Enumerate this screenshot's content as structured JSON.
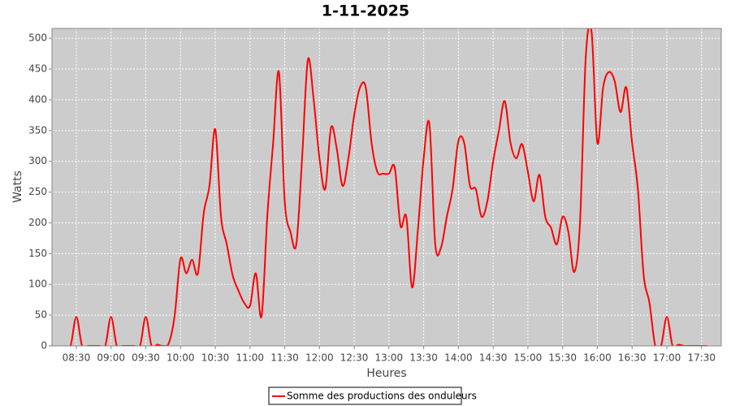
{
  "chart_data": {
    "type": "line",
    "title": "1-11-2025",
    "x_label": "Heures",
    "y_label": "Watts",
    "x": [
      "08:20",
      "08:25",
      "08:30",
      "08:35",
      "08:40",
      "08:45",
      "08:50",
      "08:55",
      "09:00",
      "09:05",
      "09:10",
      "09:15",
      "09:20",
      "09:25",
      "09:30",
      "09:35",
      "09:40",
      "09:45",
      "09:50",
      "09:55",
      "10:00",
      "10:05",
      "10:10",
      "10:15",
      "10:20",
      "10:25",
      "10:30",
      "10:35",
      "10:40",
      "10:45",
      "10:50",
      "10:55",
      "11:00",
      "11:05",
      "11:10",
      "11:15",
      "11:20",
      "11:25",
      "11:30",
      "11:35",
      "11:40",
      "11:45",
      "11:50",
      "11:55",
      "12:00",
      "12:05",
      "12:10",
      "12:15",
      "12:20",
      "12:25",
      "12:30",
      "12:35",
      "12:40",
      "12:45",
      "12:50",
      "12:55",
      "13:00",
      "13:05",
      "13:10",
      "13:15",
      "13:20",
      "13:25",
      "13:30",
      "13:35",
      "13:40",
      "13:45",
      "13:50",
      "13:55",
      "14:00",
      "14:05",
      "14:10",
      "14:15",
      "14:20",
      "14:25",
      "14:30",
      "14:35",
      "14:40",
      "14:45",
      "14:50",
      "14:55",
      "15:00",
      "15:05",
      "15:10",
      "15:15",
      "15:20",
      "15:25",
      "15:30",
      "15:35",
      "15:40",
      "15:45",
      "15:50",
      "15:55",
      "16:00",
      "16:05",
      "16:10",
      "16:15",
      "16:20",
      "16:25",
      "16:30",
      "16:35",
      "16:40",
      "16:45",
      "16:50",
      "16:55",
      "17:00",
      "17:05",
      "17:10",
      "17:15",
      "17:20",
      "17:25",
      "17:30",
      "17:35"
    ],
    "series": [
      {
        "name": "Somme des productions des onduleurs",
        "color": "#ff0000",
        "values": [
          0,
          0,
          47,
          0,
          0,
          0,
          0,
          0,
          47,
          0,
          0,
          0,
          0,
          0,
          47,
          0,
          2,
          0,
          5,
          50,
          142,
          118,
          140,
          118,
          215,
          260,
          352,
          210,
          165,
          115,
          90,
          70,
          65,
          118,
          48,
          212,
          330,
          445,
          235,
          185,
          165,
          305,
          465,
          400,
          305,
          255,
          355,
          320,
          260,
          305,
          375,
          420,
          420,
          330,
          283,
          280,
          280,
          290,
          195,
          210,
          95,
          188,
          305,
          360,
          165,
          160,
          210,
          255,
          333,
          330,
          260,
          255,
          210,
          235,
          300,
          350,
          398,
          330,
          305,
          328,
          283,
          235,
          278,
          210,
          192,
          165,
          210,
          185,
          120,
          200,
          470,
          510,
          330,
          420,
          445,
          430,
          380,
          420,
          330,
          255,
          115,
          70,
          0,
          0,
          47,
          0,
          2,
          0,
          0,
          0,
          0,
          0
        ]
      }
    ],
    "xlim": [
      "08:09",
      "17:47"
    ],
    "xticks": [
      "08:30",
      "09:00",
      "09:30",
      "10:00",
      "10:30",
      "11:00",
      "11:30",
      "12:00",
      "12:30",
      "13:00",
      "13:30",
      "14:00",
      "14:30",
      "15:00",
      "15:30",
      "16:00",
      "16:30",
      "17:00",
      "17:30"
    ],
    "ylim": [
      0,
      516
    ],
    "yticks": [
      0,
      50,
      100,
      150,
      200,
      250,
      300,
      350,
      400,
      450,
      500
    ],
    "grid": true,
    "legend": "bottom",
    "background": "#cccccc"
  }
}
